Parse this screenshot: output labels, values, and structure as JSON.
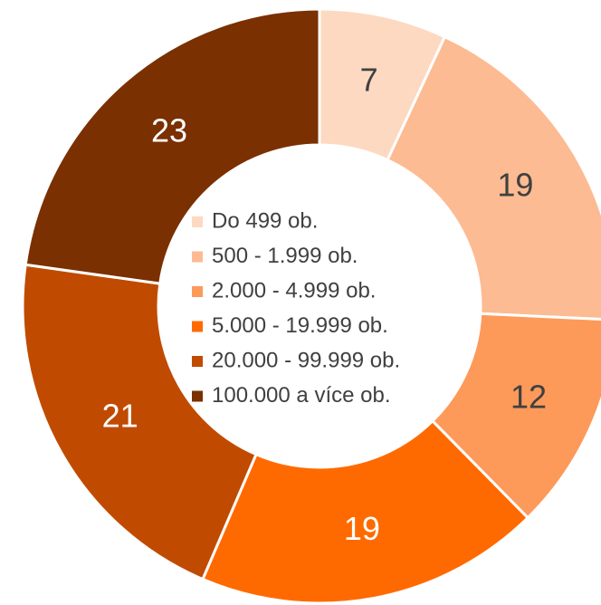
{
  "chart_data": {
    "type": "donut",
    "legend": "center",
    "categories": [
      "Do 499 ob.",
      "500 - 1.999 ob.",
      "2.000 - 4.999 ob.",
      "5.000 - 19.999 ob.",
      "20.000 - 99.999 ob.",
      "100.000 a více ob."
    ],
    "values": [
      7,
      19,
      12,
      19,
      21,
      23
    ],
    "colors": [
      "#fdd9c1",
      "#fcbb92",
      "#fd9a5a",
      "#ff6a00",
      "#c04b00",
      "#7a3000"
    ]
  }
}
